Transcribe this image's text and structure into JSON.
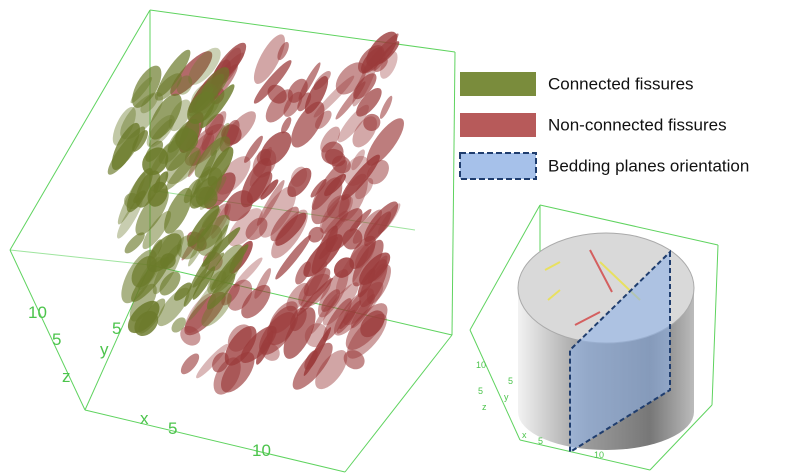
{
  "legend": {
    "items": [
      "Connected fissures",
      "Non-connected fissures",
      "Bedding planes orientation"
    ]
  },
  "left_box": {
    "axis_labels": [
      "10",
      "5",
      "z",
      "y",
      "5",
      "x",
      "5",
      "10"
    ]
  },
  "right_box": {
    "axis_labels": [
      "10",
      "5",
      "z",
      "5",
      "y",
      "x",
      "5",
      "10"
    ]
  }
}
